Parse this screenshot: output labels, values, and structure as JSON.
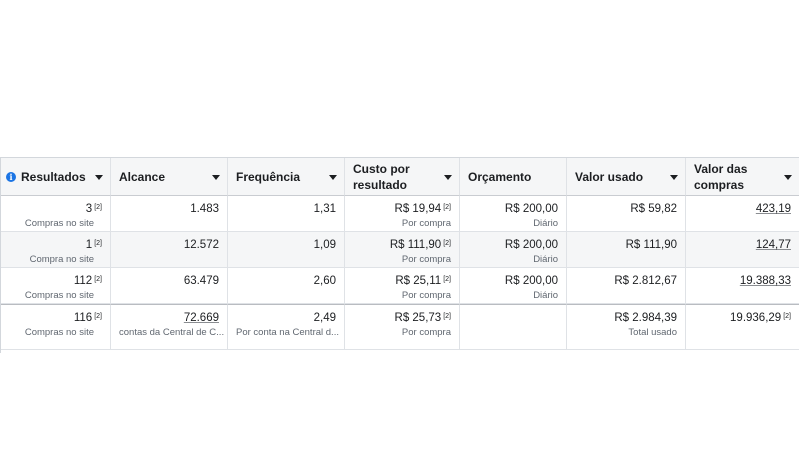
{
  "headers": {
    "results": "Resultados",
    "reach": "Alcance",
    "frequency": "Frequência",
    "cost_per_result": "Custo por\nresultado",
    "budget": "Orçamento",
    "amount_spent": "Valor usado",
    "purchase_value": "Valor das\ncompras"
  },
  "footnote_marker": "[2]",
  "rows": [
    {
      "results": "3",
      "results_sub": "Compras no site",
      "reach": "1.483",
      "frequency": "1,31",
      "cpr": "R$ 19,94",
      "cpr_sub": "Por compra",
      "budget": "R$ 200,00",
      "budget_sub": "Diário",
      "spent": "R$ 59,82",
      "purchase": "423,19"
    },
    {
      "results": "1",
      "results_sub": "Compra no site",
      "reach": "12.572",
      "frequency": "1,09",
      "cpr": "R$ 111,90",
      "cpr_sub": "Por compra",
      "budget": "R$ 200,00",
      "budget_sub": "Diário",
      "spent": "R$ 111,90",
      "purchase": "124,77"
    },
    {
      "results": "112",
      "results_sub": "Compras no site",
      "reach": "63.479",
      "frequency": "2,60",
      "cpr": "R$ 25,11",
      "cpr_sub": "Por compra",
      "budget": "R$ 200,00",
      "budget_sub": "Diário",
      "spent": "R$ 2.812,67",
      "purchase": "19.388,33"
    }
  ],
  "total": {
    "results": "116",
    "results_sub": "Compras no site",
    "reach": "72.669",
    "reach_sub": "contas da Central de C...",
    "frequency": "2,49",
    "frequency_sub": "Por conta na Central d...",
    "cpr": "R$ 25,73",
    "cpr_sub": "Por compra",
    "spent": "R$ 2.984,39",
    "spent_sub": "Total usado",
    "purchase": "19.936,29"
  }
}
